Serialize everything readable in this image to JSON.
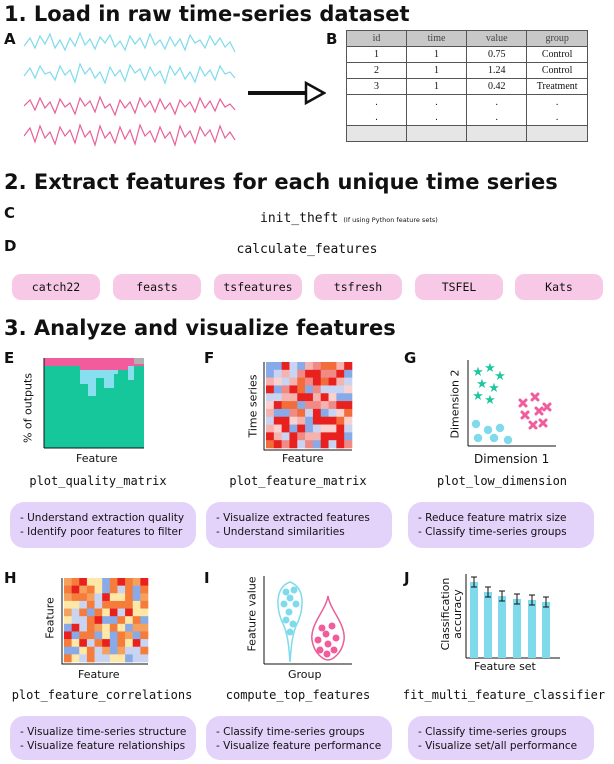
{
  "section1": {
    "title": "1. Load in raw time-series dataset"
  },
  "section2": {
    "title": "2. Extract features for each unique time series"
  },
  "section3": {
    "title": "3. Analyze and visualize features"
  },
  "letters": {
    "A": "A",
    "B": "B",
    "C": "C",
    "D": "D",
    "E": "E",
    "F": "F",
    "G": "G",
    "H": "H",
    "I": "I",
    "J": "J"
  },
  "colors": {
    "cyan": "#7fdbeb",
    "pink": "#e8609a",
    "pill": "#f8c9e6",
    "desc": "#e3d3fa",
    "teal": "#1ec7a0",
    "heat_red": "#e8201e",
    "heat_orange": "#f57c3a",
    "heat_blue": "#88aae8"
  },
  "table": {
    "headers": [
      "id",
      "time",
      "value",
      "group"
    ],
    "rows": [
      [
        "1",
        "1",
        "0.75",
        "Control"
      ],
      [
        "2",
        "1",
        "1.24",
        "Control"
      ],
      [
        "3",
        "1",
        "0.42",
        "Treatment"
      ],
      [
        ".",
        ".",
        ".",
        "."
      ],
      [
        ".",
        ".",
        ".",
        "."
      ]
    ]
  },
  "step_c": {
    "function": "init_theft",
    "note": "(If using Python feature sets)"
  },
  "step_d": {
    "function": "calculate_features"
  },
  "feature_sets": [
    "catch22",
    "feasts",
    "tsfeatures",
    "tsfresh",
    "TSFEL",
    "Kats"
  ],
  "panels": {
    "E": {
      "ylabel": "% of outputs",
      "xlabel": "Feature",
      "function": "plot_quality_matrix",
      "desc": [
        "- Understand extraction quality",
        "- Identify poor features to filter"
      ]
    },
    "F": {
      "ylabel": "Time series",
      "xlabel": "Feature",
      "function": "plot_feature_matrix",
      "desc": [
        "- Visualize extracted features",
        "- Understand similarities"
      ]
    },
    "G": {
      "ylabel": "Dimension 2",
      "xlabel": "Dimension 1",
      "function": "plot_low_dimension",
      "desc": [
        "- Reduce feature matrix size",
        "- Classify time-series groups"
      ]
    },
    "H": {
      "ylabel": "Feature",
      "xlabel": "Feature",
      "function": "plot_feature_correlations",
      "desc": [
        "- Visualize time-series structure",
        "- Visualize feature relationships"
      ]
    },
    "I": {
      "ylabel": "Feature value",
      "xlabel": "Group",
      "function": "compute_top_features",
      "desc": [
        "- Classify time-series groups",
        "- Visualize feature performance"
      ]
    },
    "J": {
      "ylabel": "Classification accuracy",
      "xlabel": "Feature set",
      "function": "fit_multi_feature_classifier",
      "desc": [
        "- Classify time-series groups",
        "- Visualize set/all performance"
      ]
    }
  }
}
